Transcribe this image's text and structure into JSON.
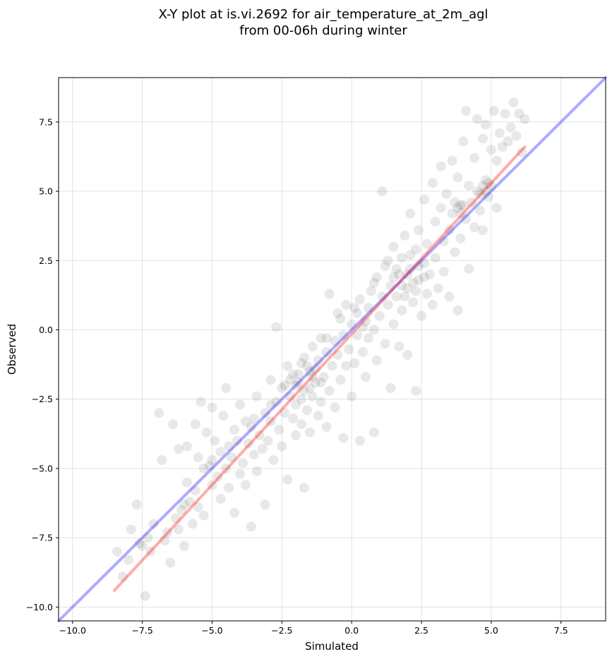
{
  "chart_data": {
    "type": "scatter",
    "title_lines": [
      "X-Y plot at is.vi.2692 for air_temperature_at_2m_agl",
      "from 00-06h during winter"
    ],
    "xlabel": "Simulated",
    "ylabel": "Observed",
    "xlim": [
      -10.5,
      9.1
    ],
    "ylim": [
      -10.5,
      9.1
    ],
    "xticks": [
      -10.0,
      -7.5,
      -5.0,
      -2.5,
      0.0,
      2.5,
      5.0,
      7.5
    ],
    "yticks": [
      -10.0,
      -7.5,
      -5.0,
      -2.5,
      0.0,
      2.5,
      5.0,
      7.5
    ],
    "xtick_labels": [
      "−10.0",
      "−7.5",
      "−5.0",
      "−2.5",
      "0.0",
      "2.5",
      "5.0",
      "7.5"
    ],
    "ytick_labels": [
      "−10.0",
      "−7.5",
      "−5.0",
      "−2.5",
      "0.0",
      "2.5",
      "5.0",
      "7.5"
    ],
    "grid": true,
    "point_color": "#000000",
    "point_opacity": 0.09,
    "reference_line": {
      "color": "#0000ff",
      "opacity": 0.33,
      "x": [
        -10.5,
        9.1
      ],
      "y": [
        -10.5,
        9.1
      ]
    },
    "fit_line": {
      "color": "#ff0000",
      "opacity": 0.33,
      "x": [
        -8.5,
        6.2
      ],
      "y": [
        -9.4,
        6.6
      ]
    },
    "points": [
      [
        -8.4,
        -8.0
      ],
      [
        -8.2,
        -8.9
      ],
      [
        -8.0,
        -8.3
      ],
      [
        -7.9,
        -7.2
      ],
      [
        -7.7,
        -6.3
      ],
      [
        -7.6,
        -7.7
      ],
      [
        -7.5,
        -7.8
      ],
      [
        -7.4,
        -9.6
      ],
      [
        -7.3,
        -7.5
      ],
      [
        -7.2,
        -8.0
      ],
      [
        -7.1,
        -7.0
      ],
      [
        -6.9,
        -3.0
      ],
      [
        -6.8,
        -4.7
      ],
      [
        -6.7,
        -7.6
      ],
      [
        -6.6,
        -7.3
      ],
      [
        -6.5,
        -8.4
      ],
      [
        -6.4,
        -3.4
      ],
      [
        -6.3,
        -6.8
      ],
      [
        -6.2,
        -4.3
      ],
      [
        -6.2,
        -7.2
      ],
      [
        -6.1,
        -6.5
      ],
      [
        -6.0,
        -7.8
      ],
      [
        -5.9,
        -4.2
      ],
      [
        -5.9,
        -5.5
      ],
      [
        -5.8,
        -6.2
      ],
      [
        -5.7,
        -7.0
      ],
      [
        -5.6,
        -3.4
      ],
      [
        -5.6,
        -5.8
      ],
      [
        -5.5,
        -6.4
      ],
      [
        -5.5,
        -4.6
      ],
      [
        -5.4,
        -2.6
      ],
      [
        -5.3,
        -5.0
      ],
      [
        -5.3,
        -6.7
      ],
      [
        -5.2,
        -3.7
      ],
      [
        -5.1,
        -4.9
      ],
      [
        -5.0,
        -5.6
      ],
      [
        -5.0,
        -2.8
      ],
      [
        -4.9,
        -4.0
      ],
      [
        -4.8,
        -5.3
      ],
      [
        -4.7,
        -6.1
      ],
      [
        -4.7,
        -4.4
      ],
      [
        -4.6,
        -3.1
      ],
      [
        -4.5,
        -5.0
      ],
      [
        -4.5,
        -2.1
      ],
      [
        -4.4,
        -5.7
      ],
      [
        -4.3,
        -4.6
      ],
      [
        -4.2,
        -3.6
      ],
      [
        -4.2,
        -6.6
      ],
      [
        -4.1,
        -4.0
      ],
      [
        -4.0,
        -5.2
      ],
      [
        -4.0,
        -2.7
      ],
      [
        -3.9,
        -4.8
      ],
      [
        -3.8,
        -3.3
      ],
      [
        -3.8,
        -5.6
      ],
      [
        -3.7,
        -4.1
      ],
      [
        -3.6,
        -7.1
      ],
      [
        -3.6,
        -3.5
      ],
      [
        -3.5,
        -4.5
      ],
      [
        -3.4,
        -2.4
      ],
      [
        -3.4,
        -5.1
      ],
      [
        -3.3,
        -3.8
      ],
      [
        -3.2,
        -4.3
      ],
      [
        -3.1,
        -3.0
      ],
      [
        -3.1,
        -6.3
      ],
      [
        -3.0,
        -4.0
      ],
      [
        -2.9,
        -1.8
      ],
      [
        -2.9,
        -3.3
      ],
      [
        -2.8,
        -4.7
      ],
      [
        -2.7,
        -2.6
      ],
      [
        -2.7,
        0.1
      ],
      [
        -2.6,
        -3.6
      ],
      [
        -2.5,
        -2.1
      ],
      [
        -2.5,
        -4.2
      ],
      [
        -2.4,
        -3.0
      ],
      [
        -2.3,
        -1.3
      ],
      [
        -2.3,
        -5.4
      ],
      [
        -2.2,
        -2.4
      ],
      [
        -2.1,
        -3.2
      ],
      [
        -2.1,
        -1.6
      ],
      [
        -2.0,
        -3.8
      ],
      [
        -2.0,
        -2.7
      ],
      [
        -1.9,
        -1.9
      ],
      [
        -1.8,
        -3.4
      ],
      [
        -1.8,
        -1.2
      ],
      [
        -1.7,
        -2.2
      ],
      [
        -1.7,
        -5.7
      ],
      [
        -1.6,
        -2.9
      ],
      [
        -1.5,
        -1.5
      ],
      [
        -1.5,
        -3.7
      ],
      [
        -1.4,
        -2.4
      ],
      [
        -1.4,
        -0.6
      ],
      [
        -1.3,
        -1.9
      ],
      [
        -1.2,
        -3.1
      ],
      [
        -1.2,
        -1.1
      ],
      [
        -1.1,
        -2.6
      ],
      [
        -1.1,
        -0.3
      ],
      [
        -1.0,
        -1.7
      ],
      [
        -0.9,
        -3.5
      ],
      [
        -0.9,
        -0.8
      ],
      [
        -0.8,
        -2.2
      ],
      [
        -0.8,
        1.3
      ],
      [
        -0.7,
        -1.3
      ],
      [
        -0.6,
        -0.4
      ],
      [
        -0.6,
        -2.8
      ],
      [
        -0.5,
        -0.9
      ],
      [
        -0.5,
        0.6
      ],
      [
        -0.4,
        -1.8
      ],
      [
        -0.3,
        -0.2
      ],
      [
        -0.3,
        -3.9
      ],
      [
        -0.2,
        -1.3
      ],
      [
        -0.2,
        0.9
      ],
      [
        -0.1,
        -0.7
      ],
      [
        0.0,
        -2.4
      ],
      [
        0.0,
        0.2
      ],
      [
        0.1,
        -1.2
      ],
      [
        0.2,
        0.6
      ],
      [
        0.2,
        -0.2
      ],
      [
        0.3,
        -4.0
      ],
      [
        0.3,
        1.1
      ],
      [
        0.4,
        -0.8
      ],
      [
        0.5,
        0.3
      ],
      [
        0.5,
        -1.7
      ],
      [
        0.6,
        0.8
      ],
      [
        0.6,
        -0.3
      ],
      [
        0.7,
        1.4
      ],
      [
        0.8,
        -3.7
      ],
      [
        0.8,
        0.0
      ],
      [
        0.9,
        1.9
      ],
      [
        0.9,
        -1.1
      ],
      [
        1.0,
        0.5
      ],
      [
        1.1,
        5.0
      ],
      [
        1.1,
        1.2
      ],
      [
        1.2,
        -0.5
      ],
      [
        1.2,
        2.3
      ],
      [
        1.3,
        0.9
      ],
      [
        1.4,
        -2.1
      ],
      [
        1.4,
        1.6
      ],
      [
        1.5,
        0.2
      ],
      [
        1.5,
        3.0
      ],
      [
        1.6,
        1.2
      ],
      [
        1.7,
        2.0
      ],
      [
        1.7,
        -0.6
      ],
      [
        1.8,
        2.6
      ],
      [
        1.8,
        0.7
      ],
      [
        1.9,
        3.4
      ],
      [
        2.0,
        1.5
      ],
      [
        2.0,
        -0.9
      ],
      [
        2.1,
        2.2
      ],
      [
        2.1,
        4.2
      ],
      [
        2.2,
        1.0
      ],
      [
        2.3,
        2.9
      ],
      [
        2.3,
        -2.2
      ],
      [
        2.4,
        1.8
      ],
      [
        2.4,
        3.6
      ],
      [
        2.5,
        0.5
      ],
      [
        2.6,
        2.4
      ],
      [
        2.6,
        4.7
      ],
      [
        2.7,
        1.3
      ],
      [
        2.7,
        3.1
      ],
      [
        2.8,
        2.0
      ],
      [
        2.9,
        5.3
      ],
      [
        2.9,
        0.9
      ],
      [
        3.0,
        3.9
      ],
      [
        3.0,
        2.6
      ],
      [
        3.1,
        1.5
      ],
      [
        3.2,
        4.4
      ],
      [
        3.2,
        5.9
      ],
      [
        3.3,
        3.2
      ],
      [
        3.3,
        2.1
      ],
      [
        3.4,
        4.9
      ],
      [
        3.5,
        3.6
      ],
      [
        3.5,
        1.2
      ],
      [
        3.6,
        6.1
      ],
      [
        3.6,
        4.2
      ],
      [
        3.7,
        2.8
      ],
      [
        3.8,
        5.5
      ],
      [
        3.8,
        0.7
      ],
      [
        3.9,
        4.5
      ],
      [
        3.9,
        3.3
      ],
      [
        4.0,
        6.8
      ],
      [
        4.1,
        4.0
      ],
      [
        4.1,
        7.9
      ],
      [
        4.2,
        5.2
      ],
      [
        4.2,
        2.2
      ],
      [
        4.3,
        4.6
      ],
      [
        4.4,
        6.2
      ],
      [
        4.4,
        3.7
      ],
      [
        4.5,
        7.6
      ],
      [
        4.5,
        5.0
      ],
      [
        4.6,
        4.3
      ],
      [
        4.7,
        6.9
      ],
      [
        4.7,
        3.6
      ],
      [
        4.8,
        5.4
      ],
      [
        4.8,
        7.4
      ],
      [
        4.9,
        4.8
      ],
      [
        5.0,
        6.5
      ],
      [
        5.0,
        5.2
      ],
      [
        5.1,
        7.9
      ],
      [
        5.2,
        4.4
      ],
      [
        5.2,
        6.1
      ],
      [
        5.3,
        7.1
      ],
      [
        5.4,
        6.6
      ],
      [
        5.5,
        7.8
      ],
      [
        5.6,
        6.8
      ],
      [
        5.7,
        7.3
      ],
      [
        5.8,
        8.2
      ],
      [
        5.9,
        7.0
      ],
      [
        6.0,
        7.8
      ],
      [
        6.1,
        6.4
      ],
      [
        6.2,
        7.6
      ],
      [
        -1.9,
        -1.6
      ],
      [
        -1.6,
        -1.3
      ],
      [
        -1.4,
        -1.7
      ],
      [
        -1.7,
        -1.0
      ],
      [
        -1.3,
        -1.4
      ],
      [
        -2.0,
        -2.0
      ],
      [
        -1.5,
        -2.1
      ],
      [
        -1.8,
        -2.5
      ],
      [
        -2.2,
        -1.8
      ],
      [
        -1.1,
        -1.9
      ],
      [
        1.8,
        1.6
      ],
      [
        2.0,
        2.0
      ],
      [
        2.2,
        1.7
      ],
      [
        1.6,
        2.2
      ],
      [
        2.4,
        2.3
      ],
      [
        1.9,
        1.2
      ],
      [
        2.1,
        2.7
      ],
      [
        2.6,
        1.9
      ],
      [
        1.5,
        1.9
      ],
      [
        2.3,
        1.4
      ],
      [
        3.8,
        4.4
      ],
      [
        3.9,
        4.2
      ],
      [
        4.7,
        5.2
      ],
      [
        4.8,
        5.0
      ],
      [
        4.6,
        4.9
      ],
      [
        3.7,
        4.6
      ],
      [
        4.0,
        4.5
      ],
      [
        4.9,
        5.3
      ],
      [
        -0.4,
        0.4
      ],
      [
        0.1,
        0.8
      ],
      [
        -0.9,
        -0.3
      ],
      [
        0.4,
        0.1
      ],
      [
        0.8,
        1.7
      ],
      [
        1.3,
        2.5
      ],
      [
        -2.4,
        -2.0
      ],
      [
        -2.9,
        -2.7
      ],
      [
        -3.5,
        -3.2
      ],
      [
        -4.4,
        -4.2
      ],
      [
        -5.0,
        -4.7
      ],
      [
        -6.0,
        -6.3
      ]
    ]
  }
}
